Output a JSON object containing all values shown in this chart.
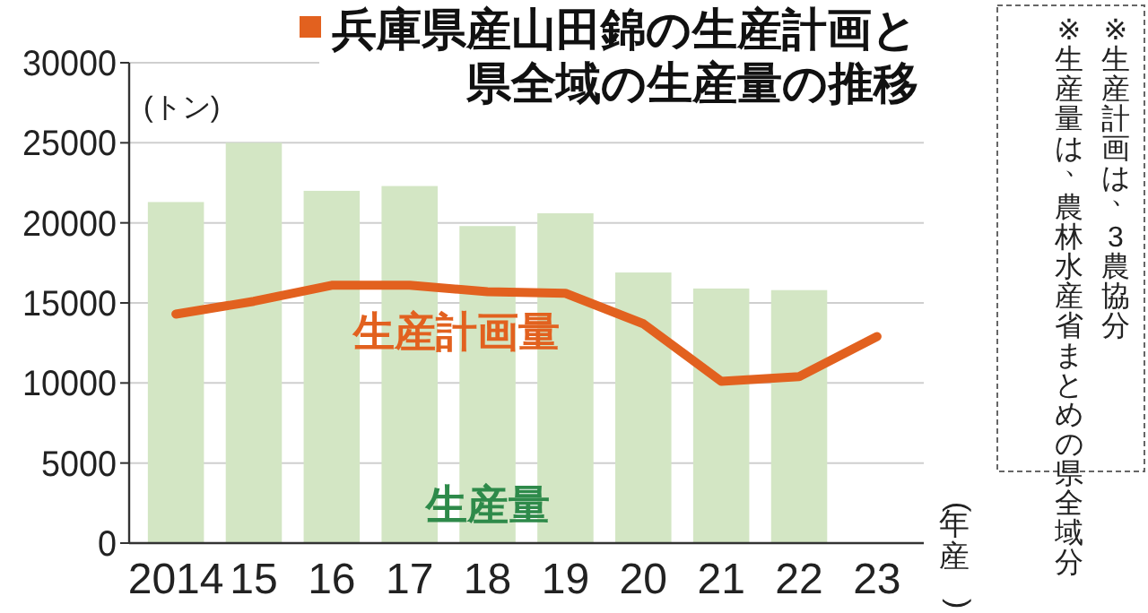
{
  "chart_data": {
    "type": "bar",
    "title": "兵庫県産山田錦の生産計画と県全域の生産量の推移",
    "ylabel": "(トン)",
    "xlabel": "(年産)",
    "categories": [
      "2014",
      "15",
      "16",
      "17",
      "18",
      "19",
      "20",
      "21",
      "22",
      "23"
    ],
    "series": [
      {
        "name": "生産量",
        "color": "#d3e6c4",
        "values": [
          21300,
          25000,
          22000,
          22300,
          19800,
          20600,
          16900,
          15900,
          15800,
          null
        ]
      },
      {
        "name": "生産計画量",
        "type": "line",
        "color": "#e2611f",
        "values": [
          14300,
          15100,
          16100,
          16100,
          15700,
          15600,
          13700,
          10100,
          10400,
          12900
        ]
      }
    ],
    "ylim": [
      0,
      30000
    ],
    "yticks": [
      0,
      5000,
      10000,
      15000,
      20000,
      25000,
      30000
    ],
    "grid": "y",
    "annotations": [
      "※生産計画は、3農協分",
      "※生産量は、農林水産省まとめの県全域分"
    ]
  }
}
